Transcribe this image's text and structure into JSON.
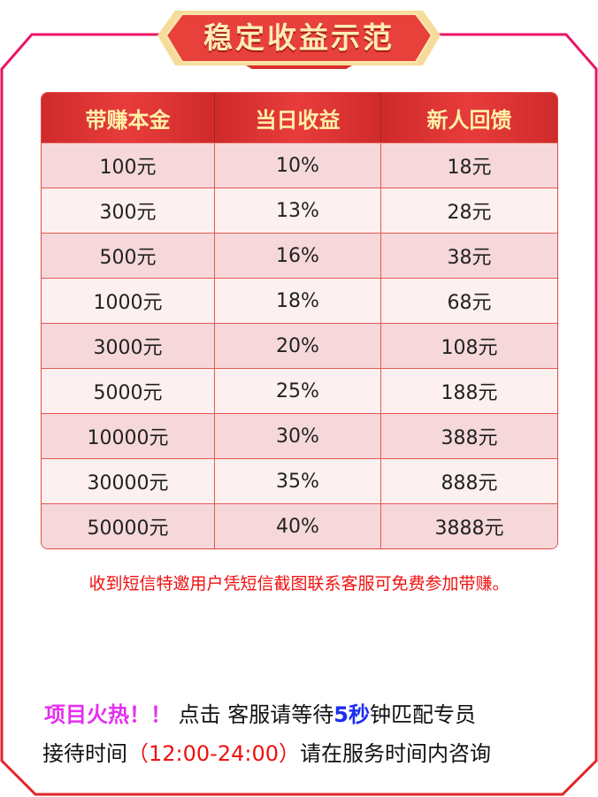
{
  "title": "稳定收益示范",
  "colors": {
    "frame_top": "#ea1468",
    "frame_bottom": "#e3262a",
    "header_bg": "#e03434",
    "header_text": "#fff2a8",
    "row_odd": "#f6d8da",
    "row_even": "#fdf0f0",
    "notice": "#f01010",
    "hot": "#e52ff0",
    "highlight": "#1a2ef0"
  },
  "table": {
    "headers": [
      "带赚本金",
      "当日收益",
      "新人回馈"
    ],
    "rows": [
      [
        "100元",
        "10%",
        "18元"
      ],
      [
        "300元",
        "13%",
        "28元"
      ],
      [
        "500元",
        "16%",
        "38元"
      ],
      [
        "1000元",
        "18%",
        "68元"
      ],
      [
        "3000元",
        "20%",
        "108元"
      ],
      [
        "5000元",
        "25%",
        "188元"
      ],
      [
        "10000元",
        "30%",
        "388元"
      ],
      [
        "30000元",
        "35%",
        "888元"
      ],
      [
        "50000元",
        "40%",
        "3888元"
      ]
    ]
  },
  "notice": "收到短信特邀用户凭短信截图联系客服可免费参加带赚。",
  "footer": {
    "hot": "项目火热！！",
    "click": "点击",
    "service": "客服",
    "wait": "请等待",
    "seconds": "5秒",
    "match": "钟匹配专员",
    "hours_label": "接待时间",
    "hours": "（12:00-24:00）",
    "hours_note": "请在服务时间内咨询"
  }
}
